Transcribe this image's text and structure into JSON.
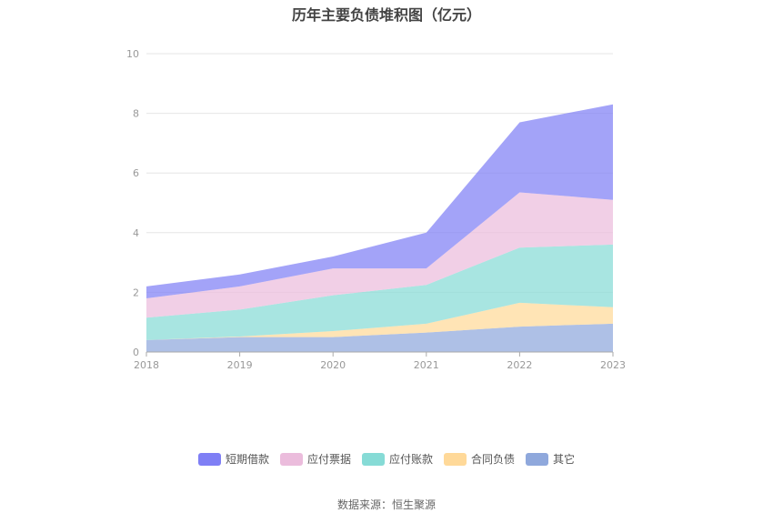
{
  "title": "历年主要负债堆积图（亿元）",
  "source": "数据来源：恒生聚源",
  "chart_data": {
    "type": "area",
    "stacked": true,
    "x": [
      "2018",
      "2019",
      "2020",
      "2021",
      "2022",
      "2023"
    ],
    "ylim": [
      0,
      10
    ],
    "yticks": [
      0,
      2,
      4,
      6,
      8,
      10
    ],
    "grid": true,
    "legend_position": "bottom",
    "series": [
      {
        "name": "其它",
        "color": "#8fa8dc",
        "values": [
          0.4,
          0.5,
          0.5,
          0.65,
          0.85,
          0.95
        ]
      },
      {
        "name": "合同负债",
        "color": "#ffd999",
        "values": [
          0.0,
          0.02,
          0.2,
          0.3,
          0.8,
          0.55
        ]
      },
      {
        "name": "应付账款",
        "color": "#86dbd6",
        "values": [
          0.75,
          0.9,
          1.2,
          1.3,
          1.85,
          2.1
        ]
      },
      {
        "name": "应付票据",
        "color": "#ebbcdc",
        "values": [
          0.65,
          0.78,
          0.9,
          0.55,
          1.85,
          1.5
        ]
      },
      {
        "name": "短期借款",
        "color": "#7f7ff5",
        "values": [
          0.4,
          0.4,
          0.4,
          1.2,
          2.35,
          3.2
        ]
      }
    ],
    "legend_order": [
      "短期借款",
      "应付票据",
      "应付账款",
      "合同负债",
      "其它"
    ]
  }
}
